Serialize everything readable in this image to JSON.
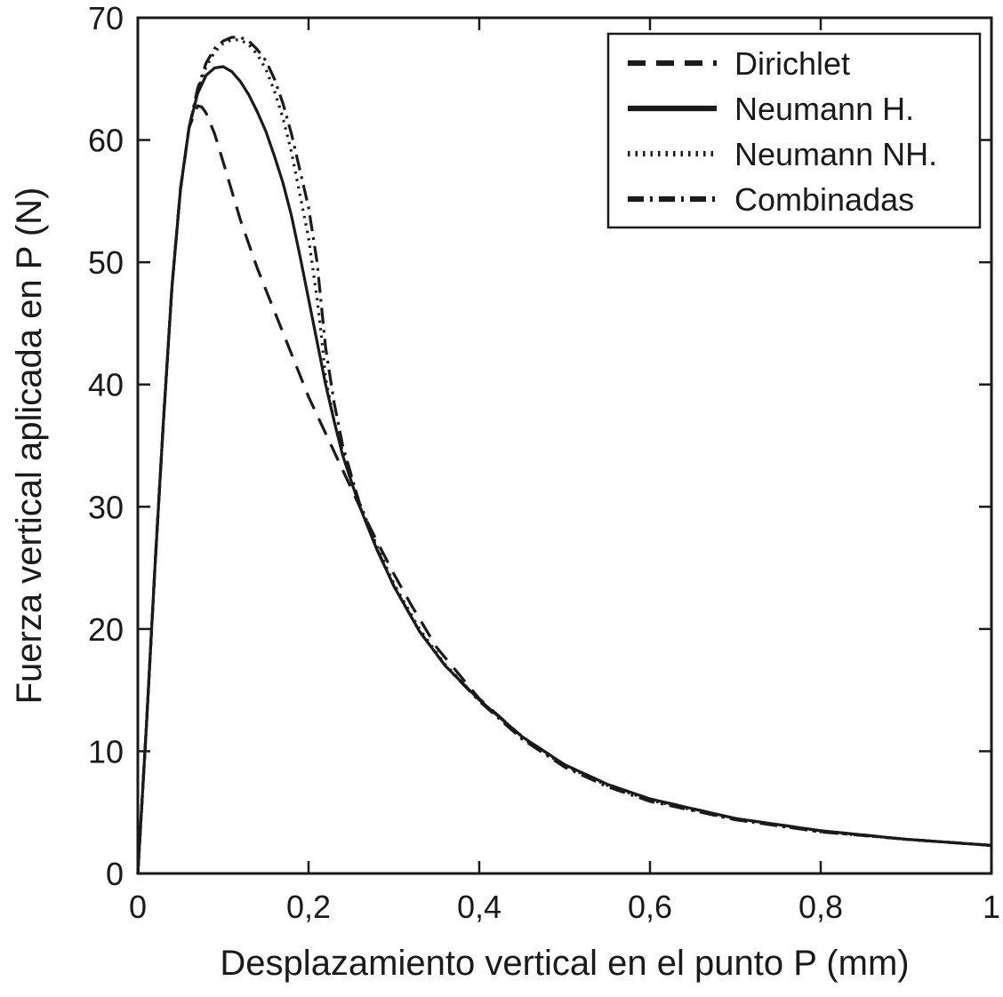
{
  "chart_data": {
    "type": "line",
    "title": "",
    "xlabel": "Desplazamiento vertical en el punto P (mm)",
    "ylabel": "Fuerza vertical aplicada en P (N)",
    "xlim": [
      0,
      1
    ],
    "ylim": [
      0,
      70
    ],
    "x_ticks": [
      0,
      0.2,
      0.4,
      0.6,
      0.8,
      1
    ],
    "x_tick_labels": [
      "0",
      "0,2",
      "0,4",
      "0,6",
      "0,8",
      "1"
    ],
    "y_ticks": [
      0,
      10,
      20,
      30,
      40,
      50,
      60,
      70
    ],
    "y_tick_labels": [
      "0",
      "10",
      "20",
      "30",
      "40",
      "50",
      "60",
      "70"
    ],
    "grid": false,
    "legend_position": "top-right",
    "line_color": "#1a1a1a",
    "series": [
      {
        "name": "Dirichlet",
        "style": "dashed",
        "x": [
          0,
          0.01,
          0.02,
          0.03,
          0.04,
          0.05,
          0.06,
          0.07,
          0.075,
          0.08,
          0.09,
          0.1,
          0.12,
          0.14,
          0.16,
          0.18,
          0.2,
          0.22,
          0.24,
          0.26,
          0.28,
          0.3,
          0.32,
          0.35,
          0.4,
          0.45,
          0.5,
          0.55,
          0.6,
          0.7,
          0.8,
          0.9,
          1.0
        ],
        "values": [
          0,
          12,
          25,
          37,
          48,
          56,
          61,
          62.8,
          62.7,
          62.2,
          60.5,
          58.2,
          53.5,
          49.5,
          46.0,
          42.5,
          39.0,
          36.0,
          33.0,
          30.0,
          27.2,
          24.5,
          22.0,
          18.5,
          14.3,
          11.2,
          8.9,
          7.3,
          6.1,
          4.5,
          3.5,
          2.8,
          2.3
        ]
      },
      {
        "name": "Neumann H.",
        "style": "solid",
        "x": [
          0,
          0.01,
          0.02,
          0.03,
          0.04,
          0.05,
          0.06,
          0.07,
          0.08,
          0.09,
          0.1,
          0.11,
          0.12,
          0.13,
          0.14,
          0.15,
          0.16,
          0.17,
          0.18,
          0.19,
          0.2,
          0.21,
          0.22,
          0.23,
          0.24,
          0.26,
          0.28,
          0.3,
          0.33,
          0.36,
          0.4,
          0.45,
          0.5,
          0.55,
          0.6,
          0.7,
          0.8,
          0.9,
          1.0
        ],
        "values": [
          0,
          12,
          25,
          37,
          48,
          56,
          61,
          63.8,
          65.3,
          65.9,
          66.0,
          65.6,
          64.8,
          63.7,
          62.3,
          60.7,
          58.7,
          56.5,
          53.8,
          50.5,
          47.0,
          43.5,
          40.0,
          37.0,
          34.2,
          30.0,
          26.5,
          23.5,
          19.8,
          17.0,
          14.2,
          11.2,
          8.9,
          7.3,
          6.1,
          4.5,
          3.5,
          2.8,
          2.3
        ]
      },
      {
        "name": "Neumann NH.",
        "style": "dotted",
        "x": [
          0,
          0.01,
          0.02,
          0.03,
          0.04,
          0.05,
          0.06,
          0.07,
          0.08,
          0.09,
          0.1,
          0.11,
          0.12,
          0.13,
          0.14,
          0.15,
          0.16,
          0.17,
          0.18,
          0.19,
          0.2,
          0.21,
          0.215,
          0.22,
          0.23,
          0.24,
          0.26,
          0.28,
          0.3,
          0.33,
          0.36,
          0.4,
          0.45,
          0.5,
          0.55,
          0.6,
          0.7,
          0.8,
          0.9,
          1.0
        ],
        "values": [
          0,
          12,
          25,
          37,
          48,
          56,
          61,
          64.0,
          66.0,
          67.2,
          67.9,
          68.2,
          68.2,
          67.8,
          67.0,
          65.8,
          64.0,
          61.8,
          59.0,
          55.5,
          52.0,
          47.0,
          44.0,
          40.5,
          37.0,
          34.5,
          30.3,
          26.8,
          23.7,
          20.0,
          17.1,
          14.2,
          11.1,
          8.8,
          7.2,
          6.0,
          4.4,
          3.4,
          2.8,
          2.3
        ]
      },
      {
        "name": "Combinadas",
        "style": "dash-dot",
        "x": [
          0,
          0.01,
          0.02,
          0.03,
          0.04,
          0.05,
          0.06,
          0.07,
          0.08,
          0.09,
          0.1,
          0.11,
          0.12,
          0.13,
          0.14,
          0.15,
          0.16,
          0.17,
          0.18,
          0.19,
          0.2,
          0.21,
          0.215,
          0.22,
          0.23,
          0.24,
          0.26,
          0.28,
          0.3,
          0.33,
          0.36,
          0.4,
          0.45,
          0.5,
          0.55,
          0.6,
          0.7,
          0.8,
          0.9,
          1.0
        ],
        "values": [
          0,
          12,
          25,
          37,
          48,
          56,
          61,
          64.2,
          66.3,
          67.5,
          68.1,
          68.4,
          68.4,
          68.1,
          67.4,
          66.5,
          65.0,
          63.0,
          60.5,
          57.5,
          54.5,
          50.0,
          46.5,
          43.0,
          38.5,
          35.0,
          30.2,
          26.6,
          23.5,
          19.8,
          17.0,
          14.1,
          11.0,
          8.7,
          7.1,
          5.9,
          4.4,
          3.4,
          2.8,
          2.3
        ]
      }
    ]
  }
}
